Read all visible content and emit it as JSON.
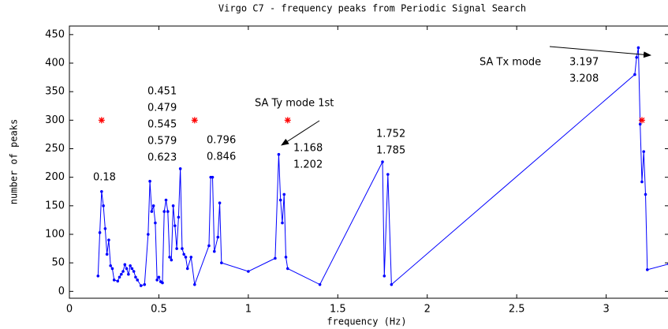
{
  "chart_data": {
    "type": "line",
    "title": "Virgo C7 - frequency peaks from Periodic Signal Search",
    "x_label": "frequency (Hz)",
    "y_label": "number of peaks",
    "xlim": [
      0,
      3.35
    ],
    "ylim": [
      -12,
      465
    ],
    "xticks": [
      0,
      0.5,
      1,
      1.5,
      2,
      2.5,
      3
    ],
    "yticks": [
      0,
      50,
      100,
      150,
      200,
      250,
      300,
      350,
      400,
      450
    ],
    "series": [
      {
        "color": "#0000ff",
        "marker": "dot",
        "linestyle": "-",
        "x": [
          0.16,
          0.17,
          0.18,
          0.19,
          0.2,
          0.21,
          0.22,
          0.23,
          0.24,
          0.25,
          0.27,
          0.28,
          0.29,
          0.3,
          0.31,
          0.32,
          0.33,
          0.34,
          0.35,
          0.36,
          0.37,
          0.38,
          0.4,
          0.42,
          0.44,
          0.45,
          0.46,
          0.47,
          0.48,
          0.49,
          0.5,
          0.51,
          0.52,
          0.53,
          0.54,
          0.55,
          0.56,
          0.57,
          0.58,
          0.59,
          0.6,
          0.61,
          0.62,
          0.63,
          0.64,
          0.65,
          0.66,
          0.68,
          0.7,
          0.78,
          0.79,
          0.8,
          0.81,
          0.83,
          0.84,
          0.85,
          1.0,
          1.15,
          1.17,
          1.18,
          1.19,
          1.2,
          1.21,
          1.22,
          1.4,
          1.75,
          1.76,
          1.78,
          1.8,
          3.16,
          3.17,
          3.18,
          3.19,
          3.2,
          3.21,
          3.22,
          3.23,
          3.35
        ],
        "values": [
          27,
          103,
          175,
          150,
          110,
          65,
          90,
          45,
          40,
          20,
          18,
          25,
          30,
          35,
          47,
          40,
          30,
          45,
          40,
          35,
          25,
          20,
          10,
          12,
          100,
          193,
          140,
          150,
          120,
          20,
          25,
          17,
          15,
          140,
          160,
          140,
          60,
          55,
          150,
          115,
          75,
          130,
          215,
          75,
          65,
          60,
          40,
          60,
          12,
          80,
          200,
          200,
          70,
          95,
          155,
          50,
          35,
          58,
          240,
          160,
          120,
          170,
          60,
          40,
          12,
          227,
          27,
          205,
          12,
          380,
          410,
          427,
          293,
          192,
          245,
          170,
          38,
          48
        ]
      },
      {
        "color": "#ff0000",
        "marker": "star",
        "linestyle": "none",
        "x": [
          0.18,
          0.7,
          1.22,
          3.2
        ],
        "values": [
          300,
          300,
          300,
          300
        ]
      }
    ],
    "annotations": [
      {
        "lines": [
          "0.18"
        ]
      },
      {
        "lines": [
          "0.451",
          "0.479",
          "0.545",
          "0.579",
          "0.623"
        ]
      },
      {
        "lines": [
          "0.796",
          "0.846"
        ]
      },
      {
        "lines": [
          "SA Ty mode 1st"
        ]
      },
      {
        "lines": [
          "1.168",
          "1.202"
        ]
      },
      {
        "lines": [
          "1.752",
          "1.785"
        ]
      },
      {
        "lines": [
          "SA Tx mode"
        ]
      },
      {
        "lines": [
          "3.197",
          "3.208"
        ]
      }
    ]
  }
}
